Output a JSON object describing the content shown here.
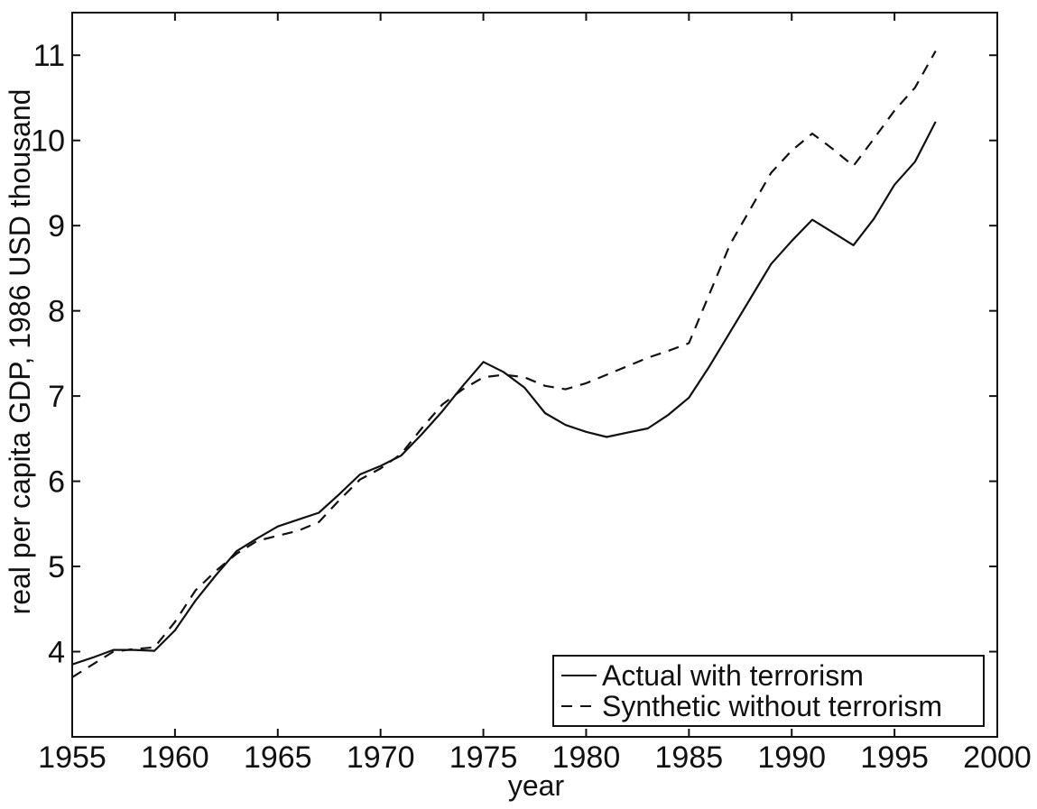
{
  "chart_data": {
    "type": "line",
    "title": "",
    "xlabel": "year",
    "ylabel": "real per capita GDP, 1986 USD thousand",
    "xlim": [
      1955,
      2000
    ],
    "ylim": [
      3,
      11.5
    ],
    "xticks": [
      1955,
      1960,
      1965,
      1970,
      1975,
      1980,
      1985,
      1990,
      1995,
      2000
    ],
    "yticks": [
      4,
      5,
      6,
      7,
      8,
      9,
      10,
      11
    ],
    "grid": false,
    "legend_position": "bottom-right",
    "series": [
      {
        "name": "Actual with terrorism",
        "style": "solid",
        "x": [
          1955,
          1956,
          1957,
          1958,
          1959,
          1960,
          1961,
          1962,
          1963,
          1964,
          1965,
          1966,
          1967,
          1968,
          1969,
          1970,
          1971,
          1972,
          1973,
          1974,
          1975,
          1976,
          1977,
          1978,
          1979,
          1980,
          1981,
          1982,
          1983,
          1984,
          1985,
          1986,
          1987,
          1988,
          1989,
          1990,
          1991,
          1992,
          1993,
          1994,
          1995,
          1996,
          1997
        ],
        "y": [
          3.85,
          3.93,
          4.02,
          4.02,
          4.01,
          4.25,
          4.6,
          4.9,
          5.18,
          5.33,
          5.47,
          5.55,
          5.63,
          5.85,
          6.08,
          6.18,
          6.3,
          6.55,
          6.82,
          7.12,
          7.4,
          7.28,
          7.1,
          6.8,
          6.66,
          6.58,
          6.52,
          6.57,
          6.62,
          6.78,
          6.98,
          7.35,
          7.75,
          8.15,
          8.55,
          8.82,
          9.07,
          8.92,
          8.77,
          9.08,
          9.48,
          9.75,
          10.22
        ]
      },
      {
        "name": "Synthetic without terrorism",
        "style": "dashed",
        "x": [
          1955,
          1956,
          1957,
          1958,
          1959,
          1960,
          1961,
          1962,
          1963,
          1964,
          1965,
          1966,
          1967,
          1968,
          1969,
          1970,
          1971,
          1972,
          1973,
          1974,
          1975,
          1976,
          1977,
          1978,
          1979,
          1980,
          1981,
          1982,
          1983,
          1984,
          1985,
          1986,
          1987,
          1988,
          1989,
          1990,
          1991,
          1992,
          1993,
          1994,
          1995,
          1996,
          1997
        ],
        "y": [
          3.7,
          3.85,
          4.0,
          4.03,
          4.05,
          4.35,
          4.72,
          4.95,
          5.15,
          5.3,
          5.36,
          5.42,
          5.52,
          5.78,
          6.02,
          6.15,
          6.32,
          6.62,
          6.9,
          7.08,
          7.22,
          7.25,
          7.22,
          7.12,
          7.08,
          7.15,
          7.25,
          7.35,
          7.45,
          7.53,
          7.62,
          8.2,
          8.78,
          9.2,
          9.62,
          9.88,
          10.08,
          9.9,
          9.7,
          10.02,
          10.35,
          10.62,
          11.05
        ]
      }
    ]
  }
}
